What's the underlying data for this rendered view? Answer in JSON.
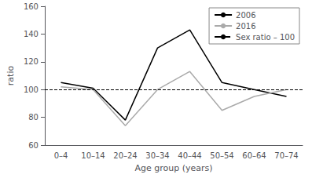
{
  "chart_data": {
    "type": "line",
    "xlabel": "Age group (years)",
    "ylabel": "ratio",
    "categories": [
      "0–4",
      "10–14",
      "20–24",
      "30–34",
      "40–44",
      "50–54",
      "60–64",
      "70–74"
    ],
    "series": [
      {
        "name": "2006",
        "color": "#000000",
        "line_style": "solid",
        "values": [
          105,
          101,
          78,
          130,
          143,
          105,
          100,
          95
        ]
      },
      {
        "name": "2016",
        "color": "#aaaaaa",
        "line_style": "solid",
        "values": [
          102,
          100,
          74,
          100,
          113,
          85,
          95,
          100
        ]
      },
      {
        "name": "Sex ratio – 100",
        "type": "hline",
        "color": "#000000",
        "line_style": "dashed",
        "value": 100
      }
    ],
    "ylim": [
      60,
      160
    ],
    "yticks": [
      60,
      80,
      100,
      120,
      140,
      160
    ],
    "grid": false,
    "legend": "upper right"
  }
}
